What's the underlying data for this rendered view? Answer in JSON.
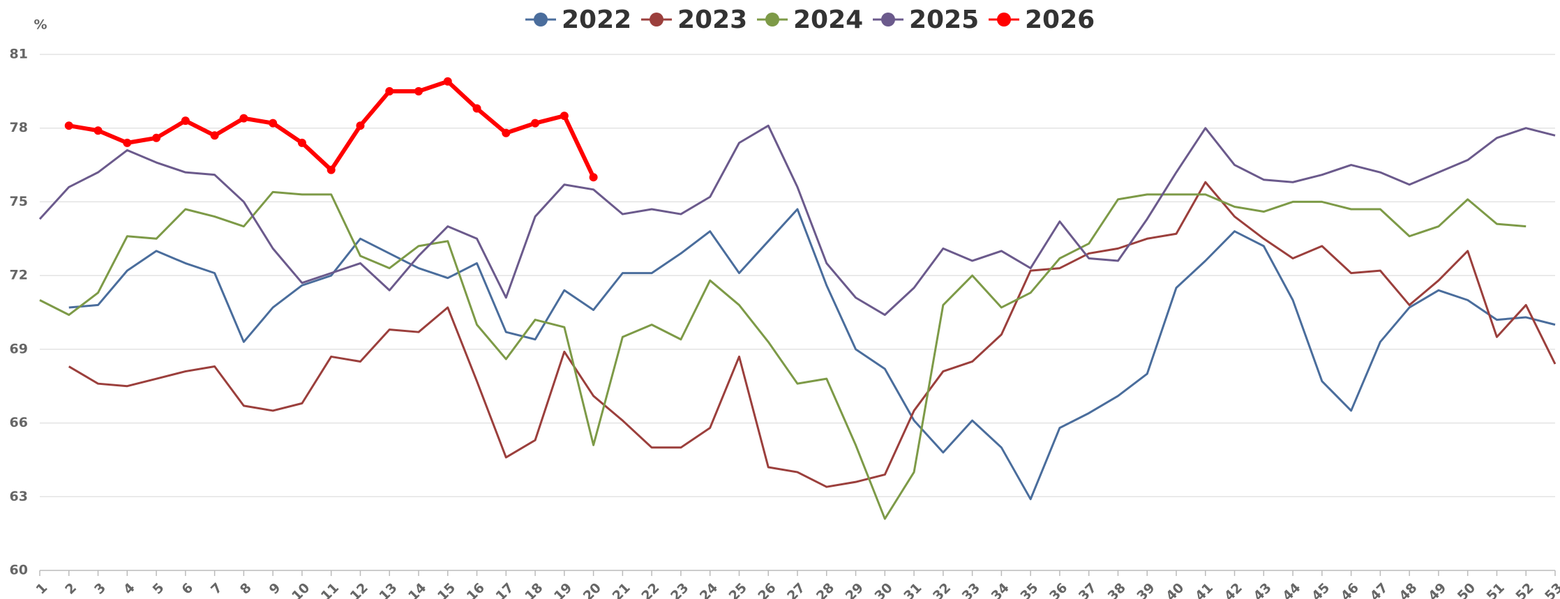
{
  "chart_data": {
    "type": "line",
    "y_unit": "%",
    "categories": [
      "1",
      "2",
      "3",
      "4",
      "5",
      "6",
      "7",
      "8",
      "9",
      "10",
      "11",
      "12",
      "13",
      "14",
      "15",
      "16",
      "17",
      "18",
      "19",
      "20",
      "21",
      "22",
      "23",
      "24",
      "25",
      "26",
      "27",
      "28",
      "29",
      "30",
      "31",
      "32",
      "33",
      "34",
      "35",
      "36",
      "37",
      "38",
      "39",
      "40",
      "41",
      "42",
      "43",
      "44",
      "45",
      "46",
      "47",
      "48",
      "49",
      "50",
      "51",
      "52",
      "53"
    ],
    "ylim": [
      60,
      81
    ],
    "yticks": [
      60,
      63,
      66,
      69,
      72,
      75,
      78,
      81
    ],
    "grid": true,
    "legend": "top",
    "series": [
      {
        "name": "2022",
        "color": "#4a6d9c",
        "values": [
          null,
          70.7,
          70.8,
          72.2,
          73.0,
          72.5,
          72.1,
          69.3,
          70.7,
          71.6,
          72.0,
          73.5,
          72.9,
          72.3,
          71.9,
          72.5,
          69.7,
          69.4,
          71.4,
          70.6,
          72.1,
          72.1,
          72.9,
          73.8,
          72.1,
          73.4,
          74.7,
          71.6,
          69.0,
          68.2,
          66.1,
          64.8,
          66.1,
          65.0,
          62.9,
          65.8,
          66.4,
          67.1,
          68.0,
          71.5,
          72.6,
          73.8,
          73.2,
          71.0,
          67.7,
          66.5,
          69.3,
          70.7,
          71.4,
          71.0,
          70.2,
          70.3,
          70.0
        ]
      },
      {
        "name": "2023",
        "color": "#9b3f3c",
        "values": [
          null,
          68.3,
          67.6,
          67.5,
          67.8,
          68.1,
          68.3,
          66.7,
          66.5,
          66.8,
          68.7,
          68.5,
          69.8,
          69.7,
          70.7,
          67.7,
          64.6,
          65.3,
          68.9,
          67.1,
          66.1,
          65.0,
          65.0,
          65.8,
          68.7,
          64.2,
          64.0,
          63.4,
          63.6,
          63.9,
          66.5,
          68.1,
          68.5,
          69.6,
          72.2,
          72.3,
          72.9,
          73.1,
          73.5,
          73.7,
          75.8,
          74.4,
          73.5,
          72.7,
          73.2,
          72.1,
          72.2,
          70.8,
          71.8,
          73.0,
          69.5,
          70.8,
          68.4
        ]
      },
      {
        "name": "2024",
        "color": "#7d9a47",
        "values": [
          71.0,
          70.4,
          71.3,
          73.6,
          73.5,
          74.7,
          74.4,
          74.0,
          75.4,
          75.3,
          75.3,
          72.8,
          72.3,
          73.2,
          73.4,
          70.0,
          68.6,
          70.2,
          69.9,
          65.1,
          69.5,
          70.0,
          69.4,
          71.8,
          70.8,
          69.3,
          67.6,
          67.8,
          65.1,
          62.1,
          64.0,
          70.8,
          72.0,
          70.7,
          71.3,
          72.7,
          73.3,
          75.1,
          75.3,
          75.3,
          75.3,
          74.8,
          74.6,
          75.0,
          75.0,
          74.7,
          74.7,
          73.6,
          74.0,
          75.1,
          74.1,
          74.0,
          null
        ]
      },
      {
        "name": "2025",
        "color": "#6b5a8c",
        "values": [
          74.3,
          75.6,
          76.2,
          77.1,
          76.6,
          76.2,
          76.1,
          75.0,
          73.1,
          71.7,
          72.1,
          72.5,
          71.4,
          72.8,
          74.0,
          73.5,
          71.1,
          74.4,
          75.7,
          75.5,
          74.5,
          74.7,
          74.5,
          75.2,
          77.4,
          78.1,
          75.6,
          72.5,
          71.1,
          70.4,
          71.5,
          73.1,
          72.6,
          73.0,
          72.3,
          74.2,
          72.7,
          72.6,
          74.3,
          76.2,
          78.0,
          76.5,
          75.9,
          75.8,
          76.1,
          76.5,
          76.2,
          75.7,
          76.2,
          76.7,
          77.6,
          78.0,
          77.7
        ]
      },
      {
        "name": "2026",
        "color": "#ff0000",
        "markers": true,
        "values": [
          null,
          78.1,
          77.9,
          77.4,
          77.6,
          78.3,
          77.7,
          78.4,
          78.2,
          77.4,
          76.3,
          78.1,
          79.5,
          79.5,
          79.9,
          78.8,
          77.8,
          78.2,
          78.5,
          76.0,
          null,
          null,
          null,
          null,
          null,
          null,
          null,
          null,
          null,
          null,
          null,
          null,
          null,
          null,
          null,
          null,
          null,
          null,
          null,
          null,
          null,
          null,
          null,
          null,
          null,
          null,
          null,
          null,
          null,
          null,
          null,
          null,
          null
        ]
      }
    ]
  }
}
